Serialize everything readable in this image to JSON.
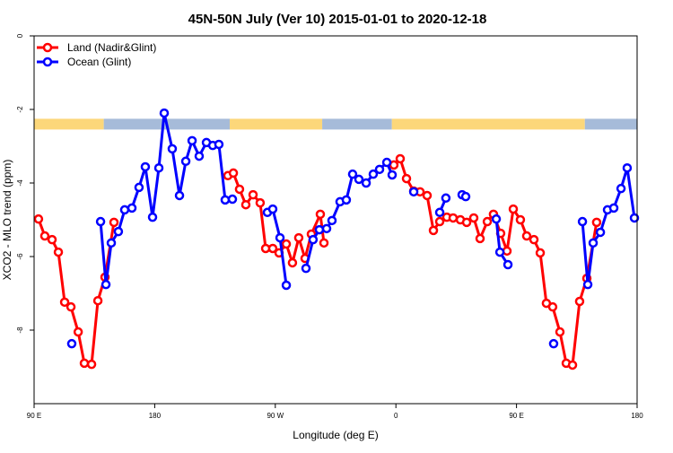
{
  "chart_data": {
    "type": "line",
    "title": "45N-50N July (Ver 10)   2015-01-01 to 2020-12-18",
    "xlabel": "Longitude (deg E)",
    "ylabel": "XCO2 - MLO trend (ppm)",
    "xlim": [
      90,
      540
    ],
    "ylim": [
      -10,
      0
    ],
    "x_ticks": [
      {
        "value": 90,
        "label": "90 E"
      },
      {
        "value": 180,
        "label": "180"
      },
      {
        "value": 270,
        "label": "90 W"
      },
      {
        "value": 360,
        "label": "0"
      },
      {
        "value": 450,
        "label": "90 E"
      },
      {
        "value": 540,
        "label": "180"
      }
    ],
    "y_ticks": [
      {
        "value": 0,
        "label": "0"
      },
      {
        "value": -2,
        "label": "-2"
      },
      {
        "value": -4,
        "label": "-4"
      },
      {
        "value": -6,
        "label": "-6"
      },
      {
        "value": -8,
        "label": "-8"
      }
    ],
    "legend_position": "top-left",
    "surface_mask": {
      "value": -2.4,
      "colors": {
        "land": "#fcd77a",
        "ocean": "#a6bbd9"
      },
      "segments": [
        {
          "type": "land",
          "from": 90,
          "to": 142
        },
        {
          "type": "ocean",
          "from": 142,
          "to": 236
        },
        {
          "type": "land",
          "from": 236,
          "to": 305
        },
        {
          "type": "ocean",
          "from": 305,
          "to": 357
        },
        {
          "type": "land",
          "from": 357,
          "to": 501
        },
        {
          "type": "ocean",
          "from": 501,
          "to": 540
        }
      ]
    },
    "series": [
      {
        "name": "Land (Nadir&Glint)",
        "color": "#ff0000",
        "segments": [
          [
            [
              93.3,
              -4.98
            ],
            [
              98.0,
              -5.44
            ],
            [
              103.4,
              -5.54
            ],
            [
              108.1,
              -5.88
            ],
            [
              112.8,
              -7.24
            ],
            [
              117.5,
              -7.37
            ],
            [
              122.9,
              -8.05
            ],
            [
              127.5,
              -8.9
            ],
            [
              132.9,
              -8.93
            ],
            [
              137.6,
              -7.2
            ],
            [
              142.9,
              -6.56
            ],
            [
              149.6,
              -5.07
            ]
          ],
          [
            [
              234.6,
              -3.8
            ],
            [
              238.7,
              -3.73
            ],
            [
              243.3,
              -4.17
            ],
            [
              248.0,
              -4.59
            ],
            [
              253.4,
              -4.32
            ],
            [
              258.7,
              -4.54
            ],
            [
              262.8,
              -5.78
            ],
            [
              268.1,
              -5.78
            ],
            [
              272.8,
              -5.9
            ],
            [
              278.2,
              -5.66
            ],
            [
              282.8,
              -6.17
            ],
            [
              287.5,
              -5.49
            ],
            [
              292.2,
              -6.05
            ],
            [
              296.9,
              -5.39
            ],
            [
              303.6,
              -4.85
            ],
            [
              306.3,
              -5.63
            ]
          ],
          [
            [
              358.5,
              -3.51
            ],
            [
              363.2,
              -3.34
            ],
            [
              367.9,
              -3.88
            ],
            [
              373.3,
              -4.22
            ],
            [
              378.0,
              -4.24
            ],
            [
              383.3,
              -4.34
            ],
            [
              388.0,
              -5.29
            ],
            [
              392.7,
              -5.05
            ],
            [
              398.0,
              -4.93
            ],
            [
              402.7,
              -4.95
            ],
            [
              408.1,
              -5.0
            ],
            [
              412.8,
              -5.07
            ],
            [
              418.1,
              -4.95
            ],
            [
              422.8,
              -5.51
            ],
            [
              428.2,
              -5.05
            ],
            [
              432.8,
              -4.85
            ],
            [
              438.2,
              -5.37
            ],
            [
              442.9,
              -5.85
            ],
            [
              447.6,
              -4.71
            ],
            [
              452.9,
              -5.0
            ],
            [
              457.6,
              -5.44
            ],
            [
              463.0,
              -5.54
            ],
            [
              467.7,
              -5.9
            ],
            [
              472.3,
              -7.27
            ],
            [
              477.0,
              -7.37
            ],
            [
              482.4,
              -8.05
            ],
            [
              487.1,
              -8.9
            ],
            [
              491.8,
              -8.95
            ],
            [
              497.1,
              -7.22
            ],
            [
              502.5,
              -6.59
            ],
            [
              509.8,
              -5.07
            ]
          ]
        ]
      },
      {
        "name": "Ocean (Glint)",
        "color": "#0000ff",
        "segments": [
          [
            [
              118.1,
              -8.37
            ]
          ],
          [
            [
              139.6,
              -5.05
            ],
            [
              143.6,
              -6.76
            ],
            [
              147.6,
              -5.63
            ],
            [
              152.9,
              -5.32
            ],
            [
              157.6,
              -4.73
            ],
            [
              163.0,
              -4.68
            ],
            [
              168.3,
              -4.12
            ],
            [
              173.0,
              -3.56
            ],
            [
              178.4,
              -4.93
            ],
            [
              183.1,
              -3.59
            ],
            [
              187.1,
              -2.1
            ],
            [
              193.1,
              -3.07
            ],
            [
              198.5,
              -4.34
            ],
            [
              203.2,
              -3.41
            ],
            [
              207.9,
              -2.85
            ],
            [
              213.2,
              -3.27
            ],
            [
              218.6,
              -2.9
            ],
            [
              223.3,
              -2.98
            ],
            [
              227.9,
              -2.95
            ],
            [
              232.6,
              -4.46
            ],
            [
              238.0,
              -4.44
            ]
          ],
          [
            [
              264.1,
              -4.8
            ],
            [
              268.1,
              -4.71
            ],
            [
              273.5,
              -5.49
            ],
            [
              278.2,
              -6.78
            ]
          ],
          [
            [
              292.9,
              -6.32
            ],
            [
              298.2,
              -5.54
            ],
            [
              302.9,
              -5.27
            ],
            [
              308.3,
              -5.24
            ],
            [
              312.3,
              -5.02
            ],
            [
              318.3,
              -4.51
            ],
            [
              323.0,
              -4.46
            ],
            [
              327.7,
              -3.76
            ],
            [
              332.4,
              -3.9
            ],
            [
              337.8,
              -4.0
            ],
            [
              343.1,
              -3.76
            ],
            [
              347.8,
              -3.63
            ],
            [
              353.2,
              -3.44
            ],
            [
              357.2,
              -3.78
            ]
          ],
          [
            [
              373.3,
              -4.24
            ]
          ],
          [
            [
              392.7,
              -4.8
            ],
            [
              397.3,
              -4.41
            ]
          ],
          [
            [
              409.4,
              -4.32
            ]
          ],
          [
            [
              412.1,
              -4.37
            ]
          ],
          [
            [
              434.9,
              -4.98
            ],
            [
              437.6,
              -5.88
            ],
            [
              443.6,
              -6.22
            ]
          ],
          [
            [
              477.7,
              -8.37
            ]
          ],
          [
            [
              499.2,
              -5.05
            ],
            [
              503.2,
              -6.76
            ],
            [
              507.2,
              -5.63
            ],
            [
              512.6,
              -5.34
            ],
            [
              517.9,
              -4.73
            ],
            [
              522.6,
              -4.68
            ],
            [
              528.0,
              -4.15
            ],
            [
              532.6,
              -3.59
            ],
            [
              538.0,
              -4.95
            ]
          ]
        ]
      }
    ]
  }
}
